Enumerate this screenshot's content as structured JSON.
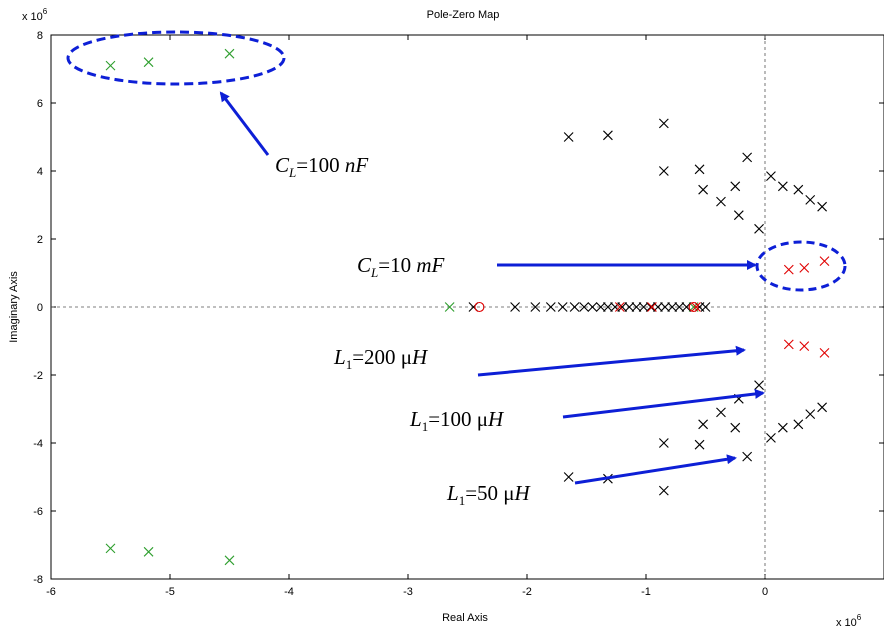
{
  "chart_data": {
    "type": "scatter",
    "title": "Pole-Zero Map",
    "xlabel": "Real Axis",
    "ylabel": "Imaginary Axis",
    "x_exponent_label": "x 10",
    "x_exponent": "6",
    "y_exponent_label": "x 10",
    "y_exponent": "6",
    "xlim": [
      -6,
      1
    ],
    "ylim": [
      -8,
      8
    ],
    "x_ticks": [
      "-6",
      "-5",
      "-4",
      "-3",
      "-2",
      "-1",
      "0"
    ],
    "y_ticks": [
      "8",
      "6",
      "4",
      "2",
      "0",
      "-2",
      "-4",
      "-6",
      "-8"
    ],
    "grid": false,
    "colors": {
      "green_poles": "#2e9e2e",
      "black_poles": "#000000",
      "red_marks": "#e00000",
      "annotation": "#0d1fd6"
    },
    "series": [
      {
        "marker": "x",
        "color": "#2e9e2e",
        "points": [
          [
            -5.5,
            7.1
          ],
          [
            -5.18,
            7.2
          ],
          [
            -4.5,
            7.45
          ],
          [
            -5.5,
            -7.1
          ],
          [
            -5.18,
            -7.2
          ],
          [
            -4.5,
            -7.45
          ],
          [
            -2.65,
            0
          ],
          [
            -0.6,
            0
          ]
        ]
      },
      {
        "marker": "x",
        "color": "#000000",
        "points": [
          [
            -1.65,
            5.0
          ],
          [
            -1.32,
            5.05
          ],
          [
            -0.85,
            5.4
          ],
          [
            -0.55,
            4.05
          ],
          [
            -0.85,
            4.0
          ],
          [
            -0.52,
            3.45
          ],
          [
            -0.15,
            4.4
          ],
          [
            -0.25,
            3.55
          ],
          [
            -0.37,
            3.1
          ],
          [
            -0.22,
            2.7
          ],
          [
            -0.05,
            2.3
          ],
          [
            0.05,
            3.85
          ],
          [
            0.15,
            3.55
          ],
          [
            0.28,
            3.45
          ],
          [
            0.38,
            3.15
          ],
          [
            0.48,
            2.95
          ],
          [
            -1.65,
            -5.0
          ],
          [
            -1.32,
            -5.05
          ],
          [
            -0.85,
            -5.4
          ],
          [
            -0.55,
            -4.05
          ],
          [
            -0.85,
            -4.0
          ],
          [
            -0.52,
            -3.45
          ],
          [
            -0.15,
            -4.4
          ],
          [
            -0.25,
            -3.55
          ],
          [
            -0.37,
            -3.1
          ],
          [
            -0.22,
            -2.7
          ],
          [
            -0.05,
            -2.3
          ],
          [
            0.05,
            -3.85
          ],
          [
            0.15,
            -3.55
          ],
          [
            0.28,
            -3.45
          ],
          [
            0.38,
            -3.15
          ],
          [
            0.48,
            -2.95
          ],
          [
            -2.45,
            0
          ],
          [
            -2.1,
            0
          ],
          [
            -1.93,
            0
          ],
          [
            -1.8,
            0
          ],
          [
            -1.7,
            0
          ],
          [
            -1.6,
            0
          ],
          [
            -1.52,
            0
          ],
          [
            -1.45,
            0
          ],
          [
            -1.38,
            0
          ],
          [
            -1.32,
            0
          ],
          [
            -1.26,
            0
          ],
          [
            -1.2,
            0
          ],
          [
            -1.14,
            0
          ],
          [
            -1.08,
            0
          ],
          [
            -1.02,
            0
          ],
          [
            -0.96,
            0
          ],
          [
            -0.9,
            0
          ],
          [
            -0.84,
            0
          ],
          [
            -0.78,
            0
          ],
          [
            -0.72,
            0
          ],
          [
            -0.66,
            0
          ],
          [
            -0.55,
            0
          ],
          [
            -0.5,
            0
          ]
        ]
      },
      {
        "marker": "x",
        "color": "#e00000",
        "points": [
          [
            0.2,
            1.1
          ],
          [
            0.33,
            1.15
          ],
          [
            0.5,
            1.35
          ],
          [
            0.2,
            -1.1
          ],
          [
            0.33,
            -1.15
          ],
          [
            0.5,
            -1.35
          ],
          [
            -1.22,
            0
          ],
          [
            -0.95,
            0
          ],
          [
            -0.58,
            0
          ]
        ]
      },
      {
        "marker": "o",
        "color": "#e00000",
        "points": [
          [
            -2.4,
            0
          ],
          [
            -0.6,
            0
          ]
        ]
      }
    ],
    "annotations": [
      {
        "base": "C",
        "sub": "L",
        "text": "=100 ",
        "unit": "nF"
      },
      {
        "base": "C",
        "sub": "L",
        "text": "=10 ",
        "unit": "mF"
      },
      {
        "base": "L",
        "sub": "1",
        "text": "=200 μ",
        "unit": "H"
      },
      {
        "base": "L",
        "sub": "1",
        "text": "=100 μ",
        "unit": "H"
      },
      {
        "base": "L",
        "sub": "1",
        "text": "=50 μ",
        "unit": "H"
      }
    ]
  }
}
